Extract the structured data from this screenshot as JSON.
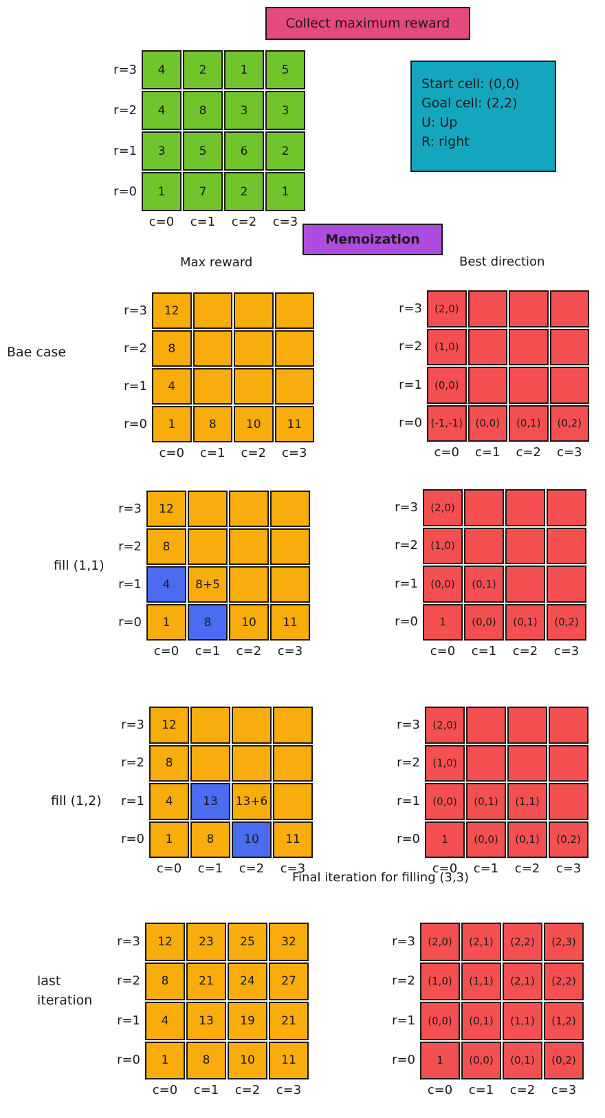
{
  "title": "Collect maximum reward",
  "legend": [
    "Start cell: (0,0)",
    "Goal cell: (2,2)",
    "U: Up",
    "R: right"
  ],
  "memo_title": "Memoization",
  "headings": {
    "max_reward": "Max reward",
    "best_direction": "Best direction",
    "final": "Final iteration for filling (3,3)"
  },
  "row_labels": [
    "r=3",
    "r=2",
    "r=1",
    "r=0"
  ],
  "col_labels": [
    "c=0",
    "c=1",
    "c=2",
    "c=3"
  ],
  "colors": {
    "reward_grid": "#72c42c",
    "max_reward": "#f8ad0c",
    "best_direction": "#f45052",
    "highlight": "#4b6cf0"
  },
  "reward_grid": [
    [
      "4",
      "2",
      "1",
      "5"
    ],
    [
      "4",
      "8",
      "3",
      "3"
    ],
    [
      "3",
      "5",
      "6",
      "2"
    ],
    [
      "1",
      "7",
      "2",
      "1"
    ]
  ],
  "stages": [
    {
      "label": [
        "Bae case"
      ],
      "max_reward": [
        [
          "12",
          "",
          "",
          ""
        ],
        [
          "8",
          "",
          "",
          ""
        ],
        [
          "4",
          "",
          "",
          ""
        ],
        [
          "1",
          "8",
          "10",
          "11"
        ]
      ],
      "best_direction": [
        [
          "(2,0)",
          "",
          "",
          ""
        ],
        [
          "(1,0)",
          "",
          "",
          ""
        ],
        [
          "(0,0)",
          "",
          "",
          ""
        ],
        [
          "(-1,-1)",
          "(0,0)",
          "(0,1)",
          "(0,2)"
        ]
      ]
    },
    {
      "label": [
        "fill (1,1)"
      ],
      "max_reward": [
        [
          "12",
          "",
          "",
          ""
        ],
        [
          "8",
          "",
          "",
          ""
        ],
        [
          "4",
          "8+5",
          "",
          ""
        ],
        [
          "1",
          "8",
          "10",
          "11"
        ]
      ],
      "highlight": [
        [
          2,
          0
        ],
        [
          3,
          1
        ]
      ],
      "best_direction": [
        [
          "(2,0)",
          "",
          "",
          ""
        ],
        [
          "(1,0)",
          "",
          "",
          ""
        ],
        [
          "(0,0)",
          "(0,1)",
          "",
          ""
        ],
        [
          "1",
          "(0,0)",
          "(0,1)",
          "(0,2)"
        ]
      ]
    },
    {
      "label": [
        "fill (1,2)"
      ],
      "max_reward": [
        [
          "12",
          "",
          "",
          ""
        ],
        [
          "8",
          "",
          "",
          ""
        ],
        [
          "4",
          "13",
          "13+6",
          ""
        ],
        [
          "1",
          "8",
          "10",
          "11"
        ]
      ],
      "highlight": [
        [
          2,
          1
        ],
        [
          3,
          2
        ]
      ],
      "best_direction": [
        [
          "(2,0)",
          "",
          "",
          ""
        ],
        [
          "(1,0)",
          "",
          "",
          ""
        ],
        [
          "(0,0)",
          "(0,1)",
          "(1,1)",
          ""
        ],
        [
          "1",
          "(0,0)",
          "(0,1)",
          "(0,2)"
        ]
      ]
    },
    {
      "label": [
        "last",
        "iteration"
      ],
      "max_reward": [
        [
          "12",
          "23",
          "25",
          "32"
        ],
        [
          "8",
          "21",
          "24",
          "27"
        ],
        [
          "4",
          "13",
          "19",
          "21"
        ],
        [
          "1",
          "8",
          "10",
          "11"
        ]
      ],
      "best_direction": [
        [
          "(2,0)",
          "(2,1)",
          "(2,2)",
          "(2,3)"
        ],
        [
          "(1,0)",
          "(1,1)",
          "(2,1)",
          "(2,2)"
        ],
        [
          "(0,0)",
          "(0,1)",
          "(1,1)",
          "(1,2)"
        ],
        [
          "1",
          "(0,0)",
          "(0,1)",
          "(0,2)"
        ]
      ]
    }
  ]
}
